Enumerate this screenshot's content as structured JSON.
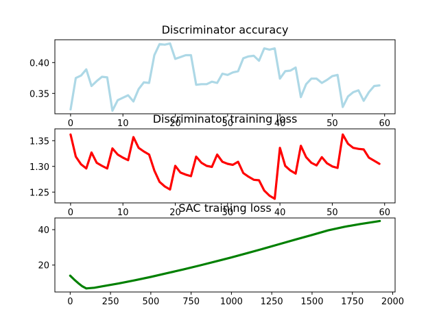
{
  "chart_data": [
    {
      "type": "line",
      "title": "Discriminator accuracy",
      "xlabel": "",
      "ylabel": "",
      "color": "#add8e6",
      "xlim": [
        -3,
        62
      ],
      "ylim": [
        0.317,
        0.437
      ],
      "xticks": [
        0,
        10,
        20,
        30,
        40,
        50,
        60
      ],
      "yticks": [
        0.35,
        0.4
      ],
      "ytick_labels": [
        "0.35",
        "0.40"
      ],
      "x": [
        0,
        1,
        2,
        3,
        4,
        5,
        6,
        7,
        8,
        9,
        10,
        11,
        12,
        13,
        14,
        15,
        16,
        17,
        18,
        19,
        20,
        21,
        22,
        23,
        24,
        25,
        26,
        27,
        28,
        29,
        30,
        31,
        32,
        33,
        34,
        35,
        36,
        37,
        38,
        39,
        40,
        41,
        42,
        43,
        44,
        45,
        46,
        47,
        48,
        49,
        50,
        51,
        52,
        53,
        54,
        55,
        56,
        57,
        58,
        59
      ],
      "values": [
        0.324,
        0.375,
        0.379,
        0.389,
        0.362,
        0.37,
        0.377,
        0.376,
        0.322,
        0.339,
        0.343,
        0.347,
        0.337,
        0.357,
        0.368,
        0.367,
        0.412,
        0.43,
        0.429,
        0.431,
        0.406,
        0.409,
        0.412,
        0.412,
        0.364,
        0.365,
        0.365,
        0.369,
        0.367,
        0.382,
        0.38,
        0.384,
        0.386,
        0.407,
        0.41,
        0.411,
        0.403,
        0.423,
        0.421,
        0.423,
        0.374,
        0.386,
        0.387,
        0.392,
        0.344,
        0.365,
        0.374,
        0.374,
        0.367,
        0.372,
        0.378,
        0.38,
        0.328,
        0.345,
        0.352,
        0.355,
        0.338,
        0.352,
        0.362,
        0.363
      ]
    },
    {
      "type": "line",
      "title": "Discriminator training loss",
      "xlabel": "",
      "ylabel": "",
      "color": "#ff0000",
      "xlim": [
        -3,
        62
      ],
      "ylim": [
        1.229,
        1.373
      ],
      "xticks": [
        0,
        10,
        20,
        30,
        40,
        50,
        60
      ],
      "yticks": [
        1.25,
        1.3,
        1.35
      ],
      "ytick_labels": [
        "1.25",
        "1.30",
        "1.35"
      ],
      "x": [
        0,
        1,
        2,
        3,
        4,
        5,
        6,
        7,
        8,
        9,
        10,
        11,
        12,
        13,
        14,
        15,
        16,
        17,
        18,
        19,
        20,
        21,
        22,
        23,
        24,
        25,
        26,
        27,
        28,
        29,
        30,
        31,
        32,
        33,
        34,
        35,
        36,
        37,
        38,
        39,
        40,
        41,
        42,
        43,
        44,
        45,
        46,
        47,
        48,
        49,
        50,
        51,
        52,
        53,
        54,
        55,
        56,
        57,
        58,
        59
      ],
      "values": [
        1.362,
        1.319,
        1.304,
        1.296,
        1.327,
        1.307,
        1.301,
        1.296,
        1.335,
        1.323,
        1.317,
        1.312,
        1.357,
        1.336,
        1.329,
        1.323,
        1.292,
        1.27,
        1.261,
        1.255,
        1.301,
        1.288,
        1.284,
        1.281,
        1.319,
        1.307,
        1.301,
        1.299,
        1.323,
        1.309,
        1.305,
        1.303,
        1.309,
        1.287,
        1.28,
        1.274,
        1.273,
        1.253,
        1.243,
        1.237,
        1.336,
        1.301,
        1.292,
        1.286,
        1.34,
        1.318,
        1.307,
        1.302,
        1.318,
        1.306,
        1.3,
        1.297,
        1.362,
        1.344,
        1.336,
        1.334,
        1.333,
        1.317,
        1.311,
        1.305
      ]
    },
    {
      "type": "line",
      "title": "SAC training loss",
      "xlabel": "",
      "ylabel": "",
      "color": "#008000",
      "xlim": [
        -95,
        2015
      ],
      "ylim": [
        4.8,
        46.6
      ],
      "xticks": [
        0,
        250,
        500,
        750,
        1000,
        1250,
        1500,
        1750,
        2000
      ],
      "yticks": [
        20,
        40
      ],
      "ytick_labels": [
        "20",
        "40"
      ],
      "x": [
        0,
        25,
        50,
        75,
        100,
        150,
        200,
        300,
        400,
        500,
        600,
        700,
        800,
        900,
        1000,
        1100,
        1200,
        1300,
        1400,
        1500,
        1600,
        1700,
        1800,
        1900,
        1920
      ],
      "values": [
        14.0,
        11.8,
        9.8,
        8.0,
        6.8,
        7.2,
        8.0,
        9.6,
        11.4,
        13.3,
        15.4,
        17.5,
        19.7,
        22.0,
        24.3,
        26.8,
        29.3,
        31.9,
        34.5,
        37.0,
        39.6,
        41.6,
        43.2,
        44.6,
        44.9
      ]
    }
  ]
}
